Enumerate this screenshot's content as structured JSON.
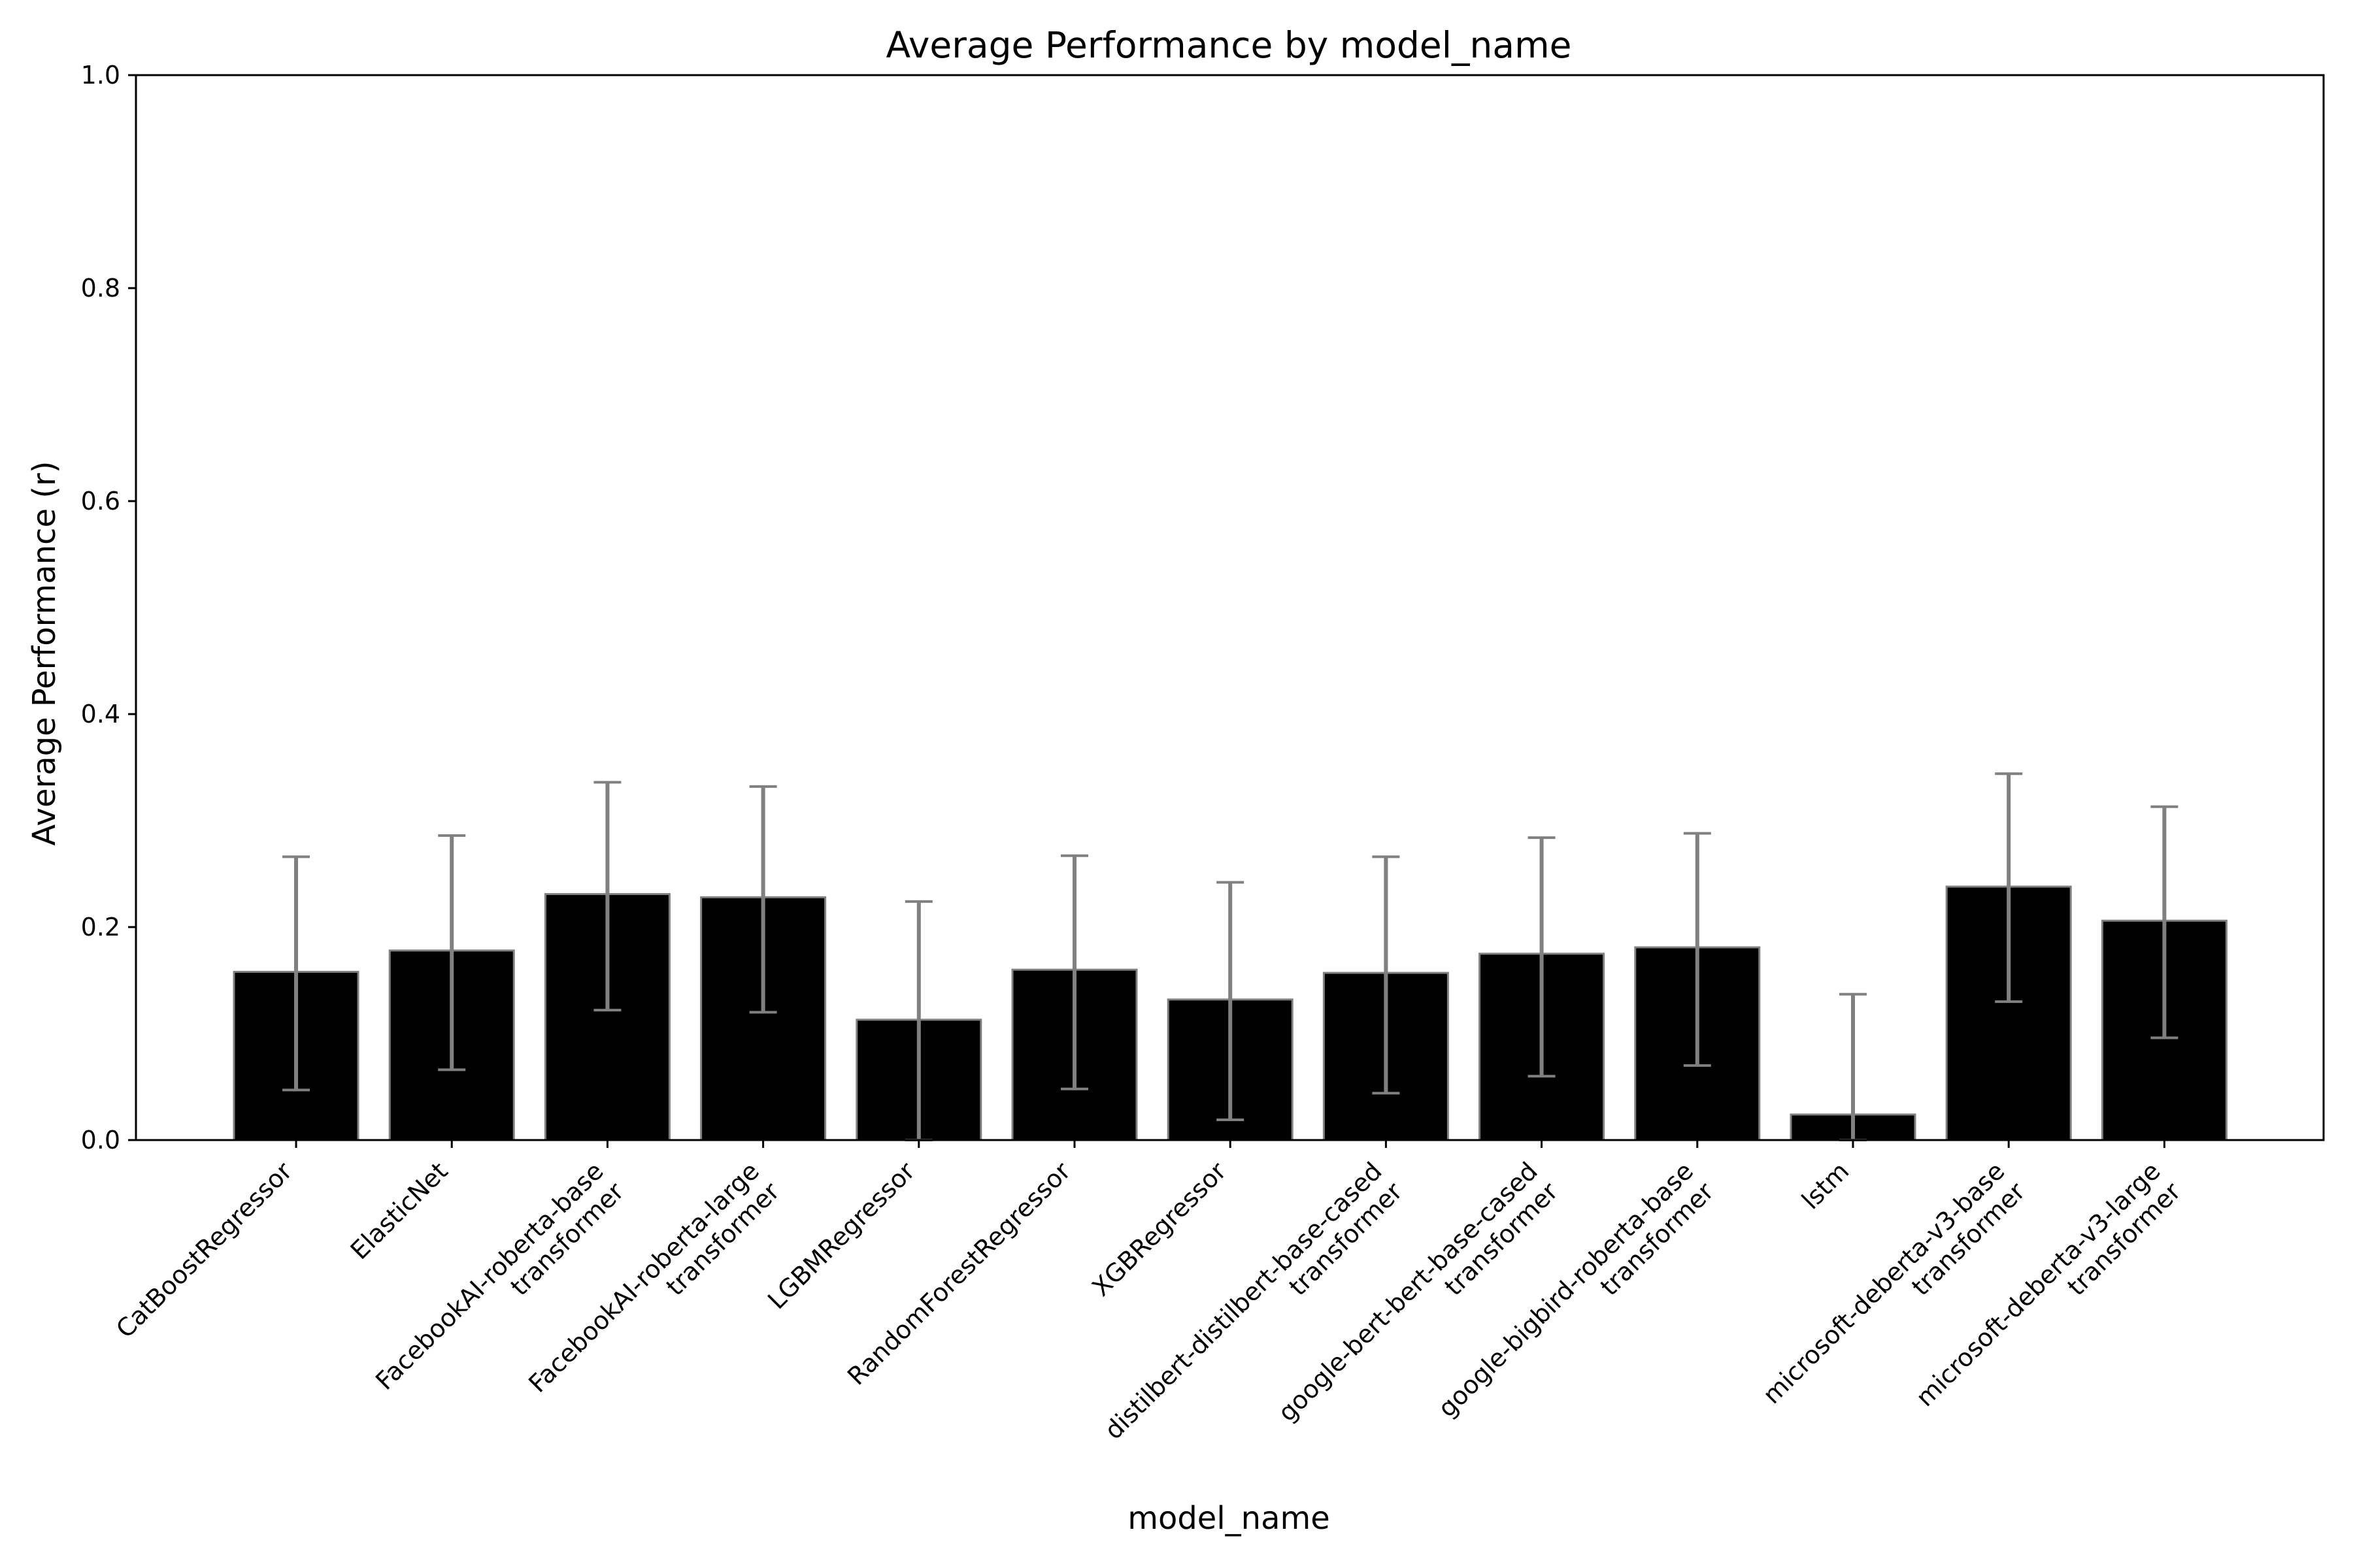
{
  "chart_data": {
    "type": "bar",
    "title": "Average Performance by model_name",
    "xlabel": "model_name",
    "ylabel": "Average Performance (r)",
    "ylim": [
      0,
      1.0
    ],
    "yticks": [
      "0.0",
      "0.2",
      "0.4",
      "0.6",
      "0.8",
      "1.0"
    ],
    "grid": false,
    "bar_color": "#000000",
    "bar_edge_color": "#808080",
    "error_bar_color": "#808080",
    "categories": [
      [
        "CatBoostRegressor"
      ],
      [
        "ElasticNet"
      ],
      [
        "FacebookAI-roberta-base",
        "transformer"
      ],
      [
        "FacebookAI-roberta-large",
        "transformer"
      ],
      [
        "LGBMRegressor"
      ],
      [
        "RandomForestRegressor"
      ],
      [
        "XGBRegressor"
      ],
      [
        "distilbert-distilbert-base-cased",
        "transformer"
      ],
      [
        "google-bert-bert-base-cased",
        "transformer"
      ],
      [
        "google-bigbird-roberta-base",
        "transformer"
      ],
      [
        "lstm"
      ],
      [
        "microsoft-deberta-v3-base",
        "transformer"
      ],
      [
        "microsoft-deberta-v3-large",
        "transformer"
      ]
    ],
    "values": [
      0.158,
      0.178,
      0.231,
      0.228,
      0.113,
      0.16,
      0.132,
      0.157,
      0.175,
      0.181,
      0.024,
      0.238,
      0.206
    ],
    "error_low": [
      0.047,
      0.066,
      0.122,
      0.12,
      0.0,
      0.048,
      0.019,
      0.044,
      0.06,
      0.07,
      0.0,
      0.13,
      0.096
    ],
    "error_high": [
      0.266,
      0.286,
      0.336,
      0.332,
      0.224,
      0.267,
      0.242,
      0.266,
      0.284,
      0.288,
      0.137,
      0.344,
      0.313
    ]
  }
}
